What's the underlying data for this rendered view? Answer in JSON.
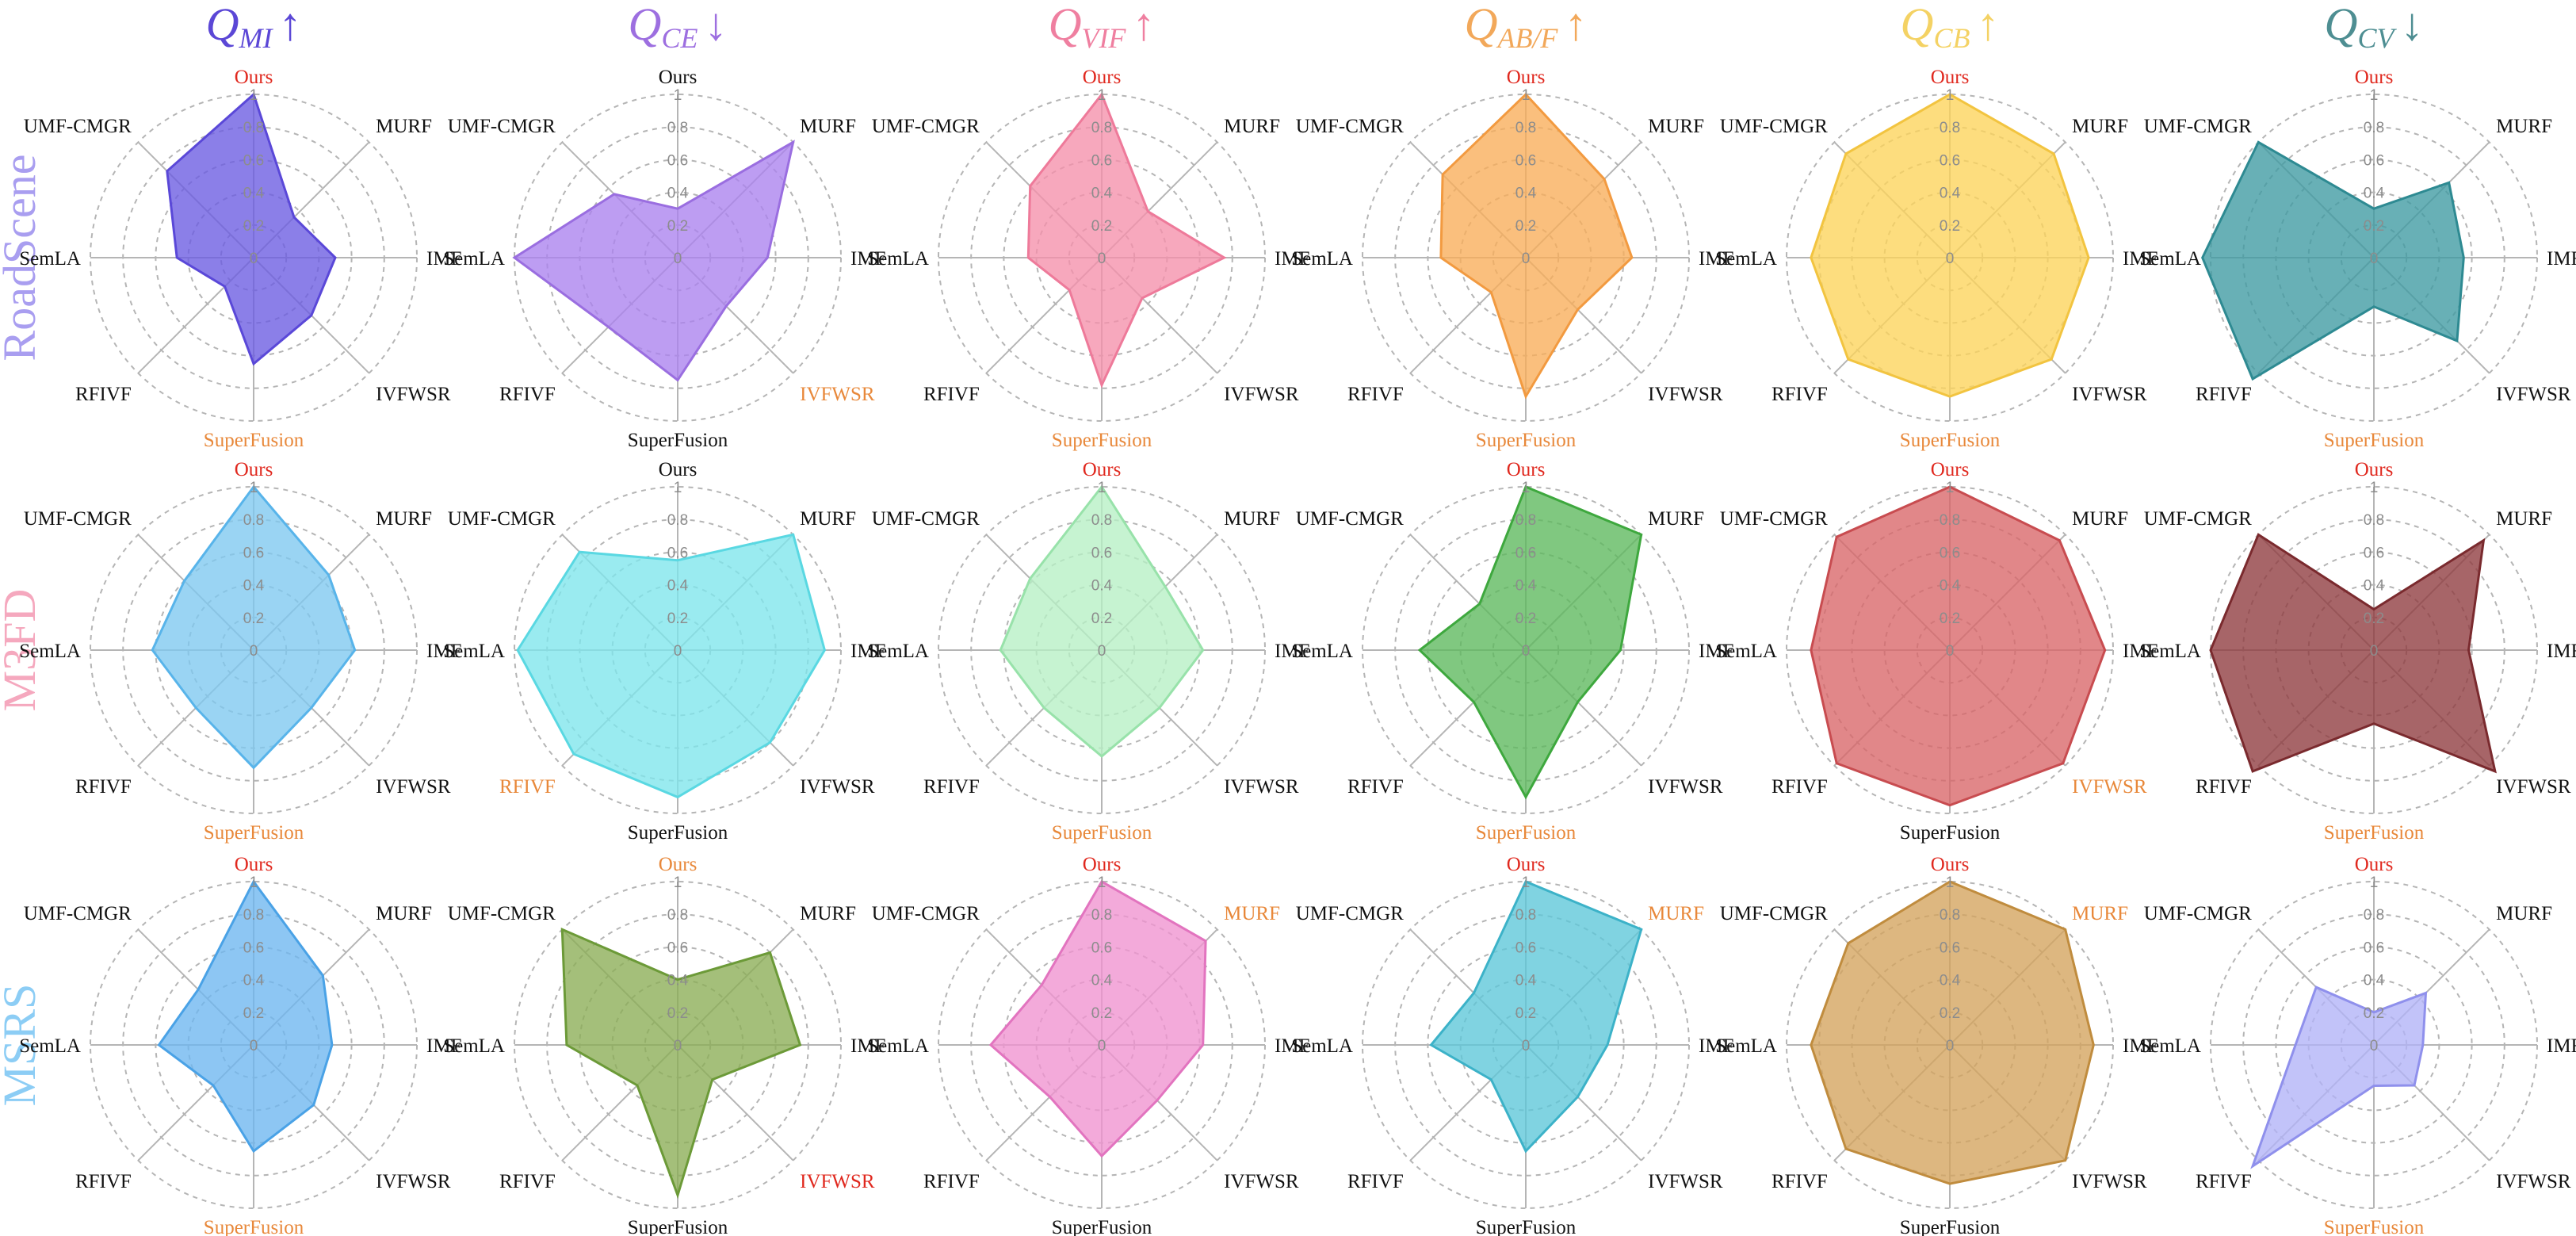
{
  "axes": [
    "Ours",
    "MURF",
    "IMF",
    "IVFWSR",
    "SuperFusion",
    "RFIVF",
    "SemLA",
    "UMF-CMGR"
  ],
  "ticks": [
    "0",
    "0.2",
    "0.4",
    "0.6",
    "0.8",
    "1"
  ],
  "colors": {
    "best": "#e0281e",
    "second": "#e8883a",
    "normal": "#111111",
    "grid": "#b5b5b5",
    "spoke": "#b5b5b5"
  },
  "columns": [
    {
      "main": "Q",
      "sub": "MI",
      "arrow": "↑",
      "color": "#5b47d6"
    },
    {
      "main": "Q",
      "sub": "CE",
      "arrow": "↓",
      "color": "#9d6fe0"
    },
    {
      "main": "Q",
      "sub": "VIF",
      "arrow": "↑",
      "color": "#ef7fa0"
    },
    {
      "main": "Q",
      "sub": "AB/F",
      "arrow": "↑",
      "color": "#f2a85a"
    },
    {
      "main": "Q",
      "sub": "CB",
      "arrow": "↑",
      "color": "#f4d264"
    },
    {
      "main": "Q",
      "sub": "CV",
      "arrow": "↓",
      "color": "#4e8e92"
    }
  ],
  "rows": [
    {
      "label": "RoadScene",
      "color": "#a99ef0"
    },
    {
      "label": "M3FD",
      "color": "#f5a8be"
    },
    {
      "label": "MSRS",
      "color": "#8ccdf5"
    }
  ],
  "chart_data": [
    {
      "type": "radar",
      "dataset": "RoadScene",
      "metric": "Q_MI",
      "fill": "#6a5be2",
      "stroke": "#5a48d8",
      "values": [
        1.0,
        0.35,
        0.5,
        0.5,
        0.65,
        0.25,
        0.47,
        0.75
      ],
      "label_roles": [
        "best",
        "normal",
        "normal",
        "normal",
        "second",
        "normal",
        "normal",
        "normal"
      ]
    },
    {
      "type": "radar",
      "dataset": "RoadScene",
      "metric": "Q_CE",
      "fill": "#ab82ee",
      "stroke": "#9a6ee0",
      "values": [
        0.3,
        1.0,
        0.55,
        0.42,
        0.75,
        0.6,
        1.0,
        0.55
      ],
      "label_roles": [
        "normal",
        "normal",
        "normal",
        "second",
        "normal",
        "normal",
        "normal",
        "normal"
      ]
    },
    {
      "type": "radar",
      "dataset": "RoadScene",
      "metric": "Q_VIF",
      "fill": "#f58fab",
      "stroke": "#ee7a9a",
      "values": [
        1.0,
        0.4,
        0.75,
        0.35,
        0.78,
        0.28,
        0.45,
        0.62
      ],
      "label_roles": [
        "best",
        "normal",
        "normal",
        "normal",
        "second",
        "normal",
        "normal",
        "normal"
      ]
    },
    {
      "type": "radar",
      "dataset": "RoadScene",
      "metric": "Q_AB/F",
      "fill": "#f9ad58",
      "stroke": "#f29a40",
      "values": [
        1.0,
        0.68,
        0.65,
        0.45,
        0.85,
        0.3,
        0.52,
        0.72
      ],
      "label_roles": [
        "best",
        "normal",
        "normal",
        "normal",
        "second",
        "normal",
        "normal",
        "normal"
      ]
    },
    {
      "type": "radar",
      "dataset": "RoadScene",
      "metric": "Q_CB",
      "fill": "#fdd45a",
      "stroke": "#f2c440",
      "values": [
        1.0,
        0.9,
        0.85,
        0.88,
        0.85,
        0.88,
        0.85,
        0.9
      ],
      "label_roles": [
        "best",
        "normal",
        "normal",
        "normal",
        "second",
        "normal",
        "normal",
        "normal"
      ]
    },
    {
      "type": "radar",
      "dataset": "RoadScene",
      "metric": "Q_CV",
      "fill": "#3e9aa2",
      "stroke": "#2e8a92",
      "values": [
        0.3,
        0.65,
        0.55,
        0.72,
        0.3,
        1.05,
        1.05,
        1.0
      ],
      "label_roles": [
        "best",
        "normal",
        "normal",
        "normal",
        "second",
        "normal",
        "normal",
        "normal"
      ]
    },
    {
      "type": "radar",
      "dataset": "M3FD",
      "metric": "Q_MI",
      "fill": "#7ec8f0",
      "stroke": "#58b4ea",
      "values": [
        1.0,
        0.65,
        0.62,
        0.5,
        0.72,
        0.5,
        0.62,
        0.6
      ],
      "label_roles": [
        "best",
        "normal",
        "normal",
        "normal",
        "second",
        "normal",
        "normal",
        "normal"
      ]
    },
    {
      "type": "radar",
      "dataset": "M3FD",
      "metric": "Q_CE",
      "fill": "#7ee6ec",
      "stroke": "#5ad8e2",
      "values": [
        0.55,
        1.0,
        0.9,
        0.8,
        0.9,
        0.9,
        0.98,
        0.85
      ],
      "label_roles": [
        "normal",
        "normal",
        "normal",
        "normal",
        "normal",
        "second",
        "normal",
        "normal"
      ]
    },
    {
      "type": "radar",
      "dataset": "M3FD",
      "metric": "Q_VIF",
      "fill": "#b6efc4",
      "stroke": "#98e2aa",
      "values": [
        1.0,
        0.55,
        0.62,
        0.5,
        0.65,
        0.5,
        0.62,
        0.62
      ],
      "label_roles": [
        "best",
        "normal",
        "normal",
        "normal",
        "second",
        "normal",
        "normal",
        "normal"
      ]
    },
    {
      "type": "radar",
      "dataset": "M3FD",
      "metric": "Q_AB/F",
      "fill": "#5cb85c",
      "stroke": "#3ea83e",
      "values": [
        1.0,
        1.0,
        0.58,
        0.45,
        0.9,
        0.45,
        0.65,
        0.4
      ],
      "label_roles": [
        "best",
        "normal",
        "normal",
        "normal",
        "second",
        "normal",
        "normal",
        "normal"
      ]
    },
    {
      "type": "radar",
      "dataset": "M3FD",
      "metric": "Q_CB",
      "fill": "#d96568",
      "stroke": "#c84c50",
      "values": [
        1.0,
        0.95,
        0.95,
        0.98,
        0.95,
        0.98,
        0.85,
        0.98
      ],
      "label_roles": [
        "best",
        "normal",
        "normal",
        "second",
        "normal",
        "normal",
        "normal",
        "normal"
      ]
    },
    {
      "type": "radar",
      "dataset": "M3FD",
      "metric": "Q_CV",
      "fill": "#8e3a3e",
      "stroke": "#7a2a2e",
      "values": [
        0.25,
        0.95,
        0.58,
        1.05,
        0.45,
        1.05,
        1.0,
        1.0
      ],
      "label_roles": [
        "best",
        "normal",
        "normal",
        "normal",
        "second",
        "normal",
        "normal",
        "normal"
      ]
    },
    {
      "type": "radar",
      "dataset": "MSRS",
      "metric": "Q_MI",
      "fill": "#6db6f0",
      "stroke": "#4aa2e6",
      "values": [
        1.0,
        0.6,
        0.48,
        0.52,
        0.65,
        0.35,
        0.58,
        0.48
      ],
      "label_roles": [
        "best",
        "normal",
        "normal",
        "normal",
        "second",
        "normal",
        "normal",
        "normal"
      ]
    },
    {
      "type": "radar",
      "dataset": "MSRS",
      "metric": "Q_CE",
      "fill": "#8aad55",
      "stroke": "#6c9a38",
      "values": [
        0.4,
        0.8,
        0.75,
        0.3,
        0.92,
        0.35,
        0.68,
        1.0
      ],
      "label_roles": [
        "second",
        "normal",
        "normal",
        "best",
        "normal",
        "normal",
        "normal",
        "normal"
      ]
    },
    {
      "type": "radar",
      "dataset": "MSRS",
      "metric": "Q_VIF",
      "fill": "#ef92cf",
      "stroke": "#e274bf",
      "values": [
        1.0,
        0.9,
        0.62,
        0.48,
        0.68,
        0.45,
        0.68,
        0.52
      ],
      "label_roles": [
        "best",
        "second",
        "normal",
        "normal",
        "normal",
        "normal",
        "normal",
        "normal"
      ]
    },
    {
      "type": "radar",
      "dataset": "MSRS",
      "metric": "Q_AB/F",
      "fill": "#5cc6d8",
      "stroke": "#3cb2c8",
      "values": [
        1.0,
        1.0,
        0.5,
        0.45,
        0.65,
        0.3,
        0.58,
        0.45
      ],
      "label_roles": [
        "best",
        "second",
        "normal",
        "normal",
        "normal",
        "normal",
        "normal",
        "normal"
      ]
    },
    {
      "type": "radar",
      "dataset": "MSRS",
      "metric": "Q_CB",
      "fill": "#d4a35c",
      "stroke": "#c08c3e",
      "values": [
        1.0,
        1.0,
        0.88,
        1.0,
        0.85,
        0.9,
        0.85,
        0.88
      ],
      "label_roles": [
        "best",
        "second",
        "normal",
        "normal",
        "normal",
        "normal",
        "normal",
        "normal"
      ]
    },
    {
      "type": "radar",
      "dataset": "MSRS",
      "metric": "Q_CV",
      "fill": "#b1b2f7",
      "stroke": "#8f90ec",
      "values": [
        0.2,
        0.45,
        0.3,
        0.35,
        0.25,
        1.05,
        0.48,
        0.5
      ],
      "label_roles": [
        "best",
        "normal",
        "normal",
        "normal",
        "second",
        "normal",
        "normal",
        "normal"
      ]
    }
  ]
}
